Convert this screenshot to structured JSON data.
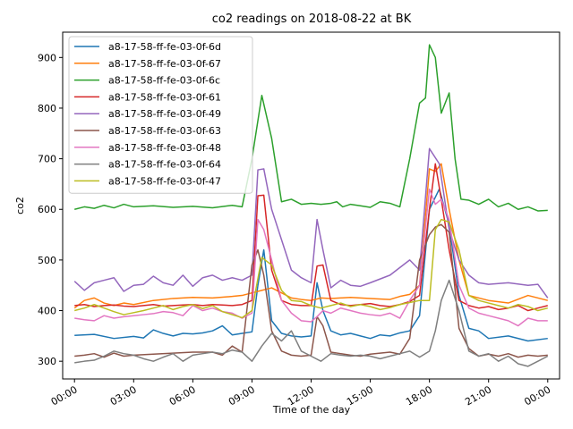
{
  "chart_data": {
    "type": "line",
    "title": "co2 readings on 2018-08-22 at BK",
    "xlabel": "Time of the day",
    "ylabel": "co2",
    "x_tick_labels": [
      "00:00",
      "03:00",
      "06:00",
      "09:00",
      "12:00",
      "15:00",
      "18:00",
      "21:00",
      "00:00"
    ],
    "x_tick_hours": [
      0,
      3,
      6,
      9,
      12,
      15,
      18,
      21,
      24
    ],
    "xlim_hours": [
      -0.6,
      24.6
    ],
    "y_ticks": [
      300,
      400,
      500,
      600,
      700,
      800,
      900
    ],
    "ylim": [
      265,
      950
    ],
    "grid": false,
    "legend_position": "top-left",
    "series": [
      {
        "name": "a8-17-58-ff-fe-03-0f-6d",
        "color": "#1f77b4",
        "x": [
          0,
          1,
          2,
          3,
          3.5,
          4,
          4.5,
          5,
          5.5,
          6,
          6.5,
          7,
          7.5,
          8,
          8.5,
          9,
          9.3,
          9.6,
          10,
          10.5,
          11,
          11.5,
          12,
          12.3,
          12.6,
          13,
          13.5,
          14,
          14.5,
          15,
          15.5,
          16,
          16.5,
          17,
          17.5,
          18,
          18.5,
          19,
          19.5,
          20,
          20.5,
          21,
          22,
          23,
          24
        ],
        "y": [
          351,
          353,
          345,
          349,
          346,
          362,
          355,
          350,
          355,
          354,
          356,
          360,
          370,
          352,
          355,
          358,
          450,
          520,
          380,
          355,
          350,
          348,
          350,
          455,
          400,
          360,
          352,
          355,
          350,
          345,
          352,
          350,
          356,
          360,
          390,
          600,
          640,
          570,
          430,
          365,
          360,
          345,
          350,
          340,
          345
        ]
      },
      {
        "name": "a8-17-58-ff-fe-03-0f-67",
        "color": "#ff7f0e",
        "x": [
          0,
          0.5,
          1,
          1.5,
          2,
          2.5,
          3,
          4,
          5,
          6,
          7,
          8,
          8.5,
          9,
          9.5,
          10,
          10.5,
          11,
          11.5,
          12,
          12.5,
          13,
          14,
          15,
          16,
          16.5,
          17,
          17.5,
          18,
          18.3,
          18.6,
          19,
          19.5,
          20,
          21,
          22,
          23,
          24
        ],
        "y": [
          405,
          420,
          425,
          415,
          410,
          415,
          412,
          420,
          424,
          426,
          425,
          428,
          430,
          435,
          440,
          445,
          435,
          425,
          422,
          420,
          425,
          424,
          426,
          424,
          422,
          428,
          432,
          450,
          680,
          675,
          690,
          600,
          500,
          430,
          420,
          415,
          430,
          420
        ]
      },
      {
        "name": "a8-17-58-ff-fe-03-0f-6c",
        "color": "#2ca02c",
        "x": [
          0,
          0.5,
          1,
          1.5,
          2,
          2.5,
          3,
          4,
          5,
          6,
          7,
          8,
          8.5,
          9,
          9.5,
          10,
          10.5,
          11,
          11.5,
          12,
          12.5,
          13,
          13.3,
          13.6,
          14,
          14.5,
          15,
          15.5,
          16,
          16.5,
          17,
          17.5,
          17.8,
          18,
          18.3,
          18.6,
          19,
          19.3,
          19.6,
          20,
          20.5,
          21,
          21.5,
          22,
          22.5,
          23,
          23.5,
          24
        ],
        "y": [
          600,
          605,
          602,
          608,
          603,
          610,
          605,
          607,
          604,
          606,
          603,
          608,
          605,
          700,
          825,
          740,
          615,
          620,
          610,
          612,
          610,
          612,
          615,
          605,
          610,
          607,
          604,
          615,
          612,
          605,
          700,
          810,
          820,
          925,
          900,
          790,
          830,
          700,
          620,
          618,
          610,
          620,
          605,
          612,
          600,
          605,
          597,
          598
        ]
      },
      {
        "name": "a8-17-58-ff-fe-03-0f-61",
        "color": "#d62728",
        "x": [
          0,
          0.5,
          1,
          1.5,
          2,
          2.5,
          3,
          3.5,
          4,
          4.5,
          5,
          5.5,
          6,
          6.5,
          7,
          7.5,
          8,
          8.5,
          9,
          9.3,
          9.6,
          10,
          10.5,
          11,
          11.5,
          12,
          12.3,
          12.6,
          13,
          13.5,
          14,
          14.5,
          15,
          15.5,
          16,
          16.5,
          17,
          17.5,
          18,
          18.3,
          18.6,
          19,
          19.5,
          20,
          20.5,
          21,
          21.5,
          22,
          22.5,
          23,
          23.5,
          24
        ],
        "y": [
          410,
          412,
          408,
          410,
          411,
          409,
          408,
          410,
          412,
          409,
          410,
          411,
          412,
          410,
          412,
          411,
          410,
          412,
          420,
          627,
          628,
          480,
          420,
          412,
          410,
          410,
          488,
          490,
          420,
          412,
          410,
          412,
          414,
          410,
          408,
          412,
          418,
          430,
          600,
          690,
          620,
          520,
          420,
          410,
          405,
          408,
          402,
          405,
          410,
          400,
          405,
          410
        ]
      },
      {
        "name": "a8-17-58-ff-fe-03-0f-49",
        "color": "#9467bd",
        "x": [
          0,
          0.5,
          1,
          1.5,
          2,
          2.5,
          3,
          3.5,
          4,
          4.5,
          5,
          5.5,
          6,
          6.5,
          7,
          7.5,
          8,
          8.5,
          9,
          9.3,
          9.6,
          10,
          10.5,
          11,
          11.5,
          12,
          12.3,
          12.6,
          13,
          13.5,
          14,
          14.5,
          15,
          16,
          17,
          17.5,
          18,
          18.5,
          19,
          19.5,
          20,
          20.5,
          21,
          22,
          23,
          23.5,
          24
        ],
        "y": [
          458,
          440,
          455,
          460,
          465,
          438,
          450,
          452,
          468,
          455,
          450,
          470,
          448,
          465,
          470,
          460,
          465,
          460,
          470,
          678,
          680,
          600,
          540,
          480,
          465,
          455,
          580,
          520,
          445,
          460,
          450,
          448,
          455,
          470,
          500,
          480,
          720,
          690,
          560,
          500,
          470,
          455,
          452,
          455,
          450,
          452,
          425
        ]
      },
      {
        "name": "a8-17-58-ff-fe-03-0f-63",
        "color": "#8c564b",
        "x": [
          0,
          0.5,
          1,
          1.5,
          2,
          2.5,
          3,
          4,
          5,
          6,
          7,
          7.5,
          8,
          8.5,
          9,
          9.3,
          9.6,
          10,
          10.5,
          11,
          11.5,
          12,
          12.3,
          12.6,
          13,
          13.5,
          14,
          14.5,
          15,
          15.5,
          16,
          16.5,
          17,
          17.5,
          18,
          18.3,
          18.6,
          19,
          19.5,
          20,
          20.5,
          21,
          21.5,
          22,
          22.5,
          23,
          23.5,
          24
        ],
        "y": [
          310,
          312,
          315,
          308,
          316,
          310,
          312,
          314,
          316,
          318,
          318,
          312,
          330,
          318,
          490,
          520,
          470,
          360,
          320,
          312,
          310,
          312,
          388,
          370,
          318,
          315,
          312,
          310,
          314,
          316,
          318,
          314,
          345,
          500,
          550,
          565,
          570,
          555,
          365,
          325,
          310,
          314,
          310,
          315,
          308,
          312,
          310,
          312
        ]
      },
      {
        "name": "a8-17-58-ff-fe-03-0f-48",
        "color": "#e377c2",
        "x": [
          0,
          0.5,
          1,
          1.5,
          2,
          2.5,
          3,
          3.5,
          4,
          4.5,
          5,
          5.5,
          6,
          6.5,
          7,
          7.5,
          8,
          8.5,
          9,
          9.3,
          9.6,
          10,
          10.5,
          11,
          11.5,
          12,
          12.3,
          12.6,
          13,
          13.5,
          14,
          14.5,
          15,
          15.5,
          16,
          16.5,
          17,
          17.5,
          18,
          18.3,
          18.6,
          19,
          19.5,
          20,
          20.5,
          21,
          21.5,
          22,
          22.5,
          23,
          23.5,
          24
        ],
        "y": [
          385,
          382,
          380,
          390,
          385,
          388,
          390,
          392,
          394,
          398,
          396,
          390,
          410,
          400,
          405,
          398,
          395,
          385,
          395,
          580,
          560,
          500,
          420,
          395,
          380,
          378,
          388,
          400,
          395,
          405,
          400,
          395,
          392,
          390,
          395,
          385,
          420,
          450,
          640,
          610,
          620,
          580,
          450,
          405,
          395,
          390,
          385,
          380,
          370,
          385,
          380,
          380
        ]
      },
      {
        "name": "a8-17-58-ff-fe-03-0f-64",
        "color": "#7f7f7f",
        "x": [
          0,
          0.5,
          1,
          1.5,
          2,
          2.5,
          3,
          3.5,
          4,
          4.5,
          5,
          5.5,
          6,
          6.5,
          7,
          7.5,
          8,
          8.5,
          9,
          9.5,
          10,
          10.5,
          11,
          11.5,
          12,
          12.5,
          13,
          13.5,
          14,
          14.5,
          15,
          15.5,
          16,
          16.5,
          17,
          17.5,
          18,
          18.3,
          18.6,
          19,
          19.5,
          20,
          20.5,
          21,
          21.5,
          22,
          22.5,
          23,
          23.5,
          24
        ],
        "y": [
          297,
          300,
          302,
          310,
          320,
          315,
          312,
          305,
          300,
          308,
          315,
          300,
          312,
          315,
          318,
          315,
          322,
          318,
          300,
          330,
          355,
          340,
          360,
          320,
          310,
          300,
          315,
          312,
          310,
          312,
          310,
          305,
          310,
          315,
          320,
          308,
          320,
          360,
          420,
          460,
          400,
          320,
          310,
          315,
          300,
          310,
          295,
          290,
          300,
          310
        ]
      },
      {
        "name": "a8-17-58-ff-fe-03-0f-47",
        "color": "#bcbd22",
        "x": [
          0,
          0.5,
          1,
          1.5,
          2,
          2.5,
          3,
          3.5,
          4,
          4.5,
          5,
          5.5,
          6,
          6.5,
          7,
          7.5,
          8,
          8.5,
          9,
          9.5,
          10,
          10.5,
          11,
          11.5,
          12,
          12.5,
          13,
          13.5,
          14,
          14.5,
          15,
          15.5,
          16,
          16.5,
          17,
          17.5,
          18,
          18.3,
          18.6,
          19,
          19.5,
          20,
          20.5,
          21,
          21.5,
          22,
          22.5,
          23,
          23.5,
          24
        ],
        "y": [
          400,
          405,
          412,
          405,
          398,
          392,
          396,
          400,
          405,
          410,
          402,
          408,
          412,
          404,
          410,
          398,
          392,
          386,
          400,
          505,
          490,
          440,
          420,
          418,
          410,
          405,
          410,
          415,
          408,
          412,
          408,
          402,
          406,
          412,
          416,
          420,
          420,
          560,
          580,
          575,
          520,
          430,
          420,
          415,
          410,
          405,
          412,
          408,
          400,
          405
        ]
      }
    ]
  }
}
